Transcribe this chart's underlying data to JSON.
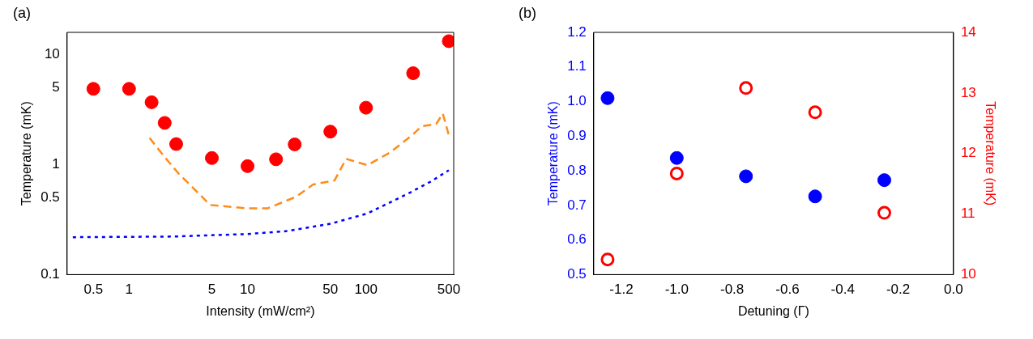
{
  "chart_data": [
    {
      "type": "scatter",
      "title": "(a)",
      "xlabel": "Intensity (mW/cm²)",
      "ylabel": "Temperature (mK)",
      "log": "xy",
      "grid": false,
      "xlim": [
        0.3,
        550
      ],
      "xticks": [
        0.5,
        1,
        5,
        10,
        50,
        100,
        500
      ],
      "ylim": [
        0.1,
        16
      ],
      "yticks": [
        0.1,
        0.5,
        1,
        5,
        10
      ],
      "series": [
        {
          "color": "#ff0000",
          "marker": "circle",
          "x": [
            0.5,
            1,
            1.55,
            2.0,
            2.5,
            5,
            10,
            17.4,
            25,
            50,
            100,
            250,
            500
          ],
          "values": [
            4.9,
            4.9,
            3.7,
            2.4,
            1.54,
            1.15,
            0.97,
            1.12,
            1.53,
            2.0,
            3.3,
            6.8,
            13.3
          ]
        },
        {
          "type": "line",
          "color": "#ff8c1a",
          "marker": "none",
          "line_style": "dashed",
          "x": [
            1.49,
            1.99,
            2.62,
            4.84,
            10,
            14.7,
            25.6,
            35.8,
            54.3,
            67.9,
            103,
            161,
            244,
            296,
            392,
            445,
            502
          ],
          "values": [
            1.75,
            1.18,
            0.83,
            0.43,
            0.4,
            0.4,
            0.51,
            0.66,
            0.72,
            1.13,
            0.99,
            1.3,
            1.85,
            2.24,
            2.35,
            2.92,
            1.83
          ]
        },
        {
          "type": "line",
          "color": "#0000ff",
          "marker": "none",
          "line_style": "dotted",
          "x": [
            0.335,
            2.34,
            10,
            21.7,
            50,
            103,
            237,
            350,
            500
          ],
          "values": [
            0.219,
            0.222,
            0.234,
            0.249,
            0.29,
            0.36,
            0.56,
            0.7,
            0.89
          ]
        }
      ]
    },
    {
      "type": "scatter",
      "title": "(b)",
      "xlabel": "Detuning (Γ)",
      "ylabel": "Temperature (mK)",
      "y2label": "Temperature (mK)",
      "grid": false,
      "xlim": [
        -1.3,
        0
      ],
      "xticks": [
        -1.2,
        {
          "value": -1,
          "label": "-1.0"
        },
        -0.8,
        -0.6,
        -0.4,
        -0.2,
        {
          "value": 0,
          "label": "0.0"
        }
      ],
      "ylim": [
        0.5,
        1.2
      ],
      "yticks": [
        0.5,
        0.6,
        0.7,
        0.8,
        0.9,
        {
          "value": 1,
          "label": "1.0"
        },
        1.1,
        1.2
      ],
      "y2lim": [
        10,
        14
      ],
      "y2ticks": [
        10,
        11,
        12,
        13,
        14
      ],
      "series": [
        {
          "color": "#0000ff",
          "marker": "circle",
          "x": [
            -1.25,
            -1,
            -0.75,
            -0.5,
            -0.25
          ],
          "values": [
            1.01,
            0.837,
            0.784,
            0.726,
            0.773
          ]
        },
        {
          "color": "#ff0000",
          "marker": "circle",
          "axis": "y2",
          "x": [
            -1.25,
            -1,
            -0.75,
            -0.5,
            -0.25
          ],
          "values": [
            10.25,
            11.67,
            13.08,
            12.68,
            11.02
          ]
        }
      ]
    }
  ]
}
